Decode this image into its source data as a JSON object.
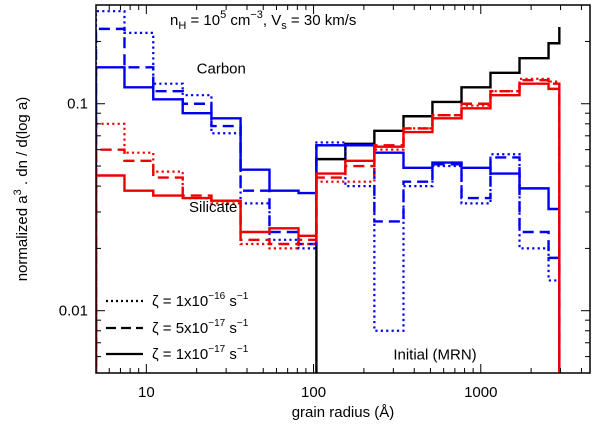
{
  "chart_data": {
    "type": "line",
    "step": true,
    "title_parts": {
      "n": "n",
      "n_sub": "H",
      "eq1": " = 10",
      "exp1": "5",
      "unit1": " cm",
      "exp2": "−3",
      "sep": ", V",
      "v_sub": "s",
      "eq2": " = 30 km/s"
    },
    "xlabel": "grain radius (Å)",
    "ylabel_parts": {
      "a": "normalized a",
      "exp": "3",
      "b": " . dn / d(log a)"
    },
    "xscale": "log",
    "yscale": "log",
    "xlim": [
      5,
      4500
    ],
    "ylim": [
      0.005,
      0.3
    ],
    "x_ticks": [
      {
        "value": 10,
        "label": "10"
      },
      {
        "value": 100,
        "label": "100"
      },
      {
        "value": 1000,
        "label": "1000"
      }
    ],
    "y_ticks": [
      {
        "value": 0.01,
        "label": "0.01"
      },
      {
        "value": 0.1,
        "label": "0.1"
      }
    ],
    "bin_edges": [
      5,
      7.4,
      11,
      16.5,
      24.5,
      36.6,
      54.5,
      81.3,
      104,
      155,
      231,
      345,
      514,
      767,
      1143,
      1705,
      2543,
      2950
    ],
    "annotations": [
      {
        "text": "Carbon",
        "x": 20,
        "y": 0.14
      },
      {
        "text": "Silicate",
        "x": 18,
        "y": 0.03
      },
      {
        "text": "Initial (MRN)",
        "x": 300,
        "y": 0.0058
      }
    ],
    "legend": {
      "position": "bottom-left",
      "entries": [
        {
          "pre": "ζ = 1x10",
          "exp": "−16",
          "unit": " s",
          "uexp": "−1",
          "dash": "dotted"
        },
        {
          "pre": "ζ = 5x10",
          "exp": "−17",
          "unit": " s",
          "uexp": "−1",
          "dash": "dashed"
        },
        {
          "pre": "ζ = 1x10",
          "exp": "−17",
          "unit": " s",
          "uexp": "−1",
          "dash": "solid"
        }
      ]
    },
    "series": [
      {
        "name": "Initial (MRN) - Carbon",
        "color": "#000000",
        "dash": "solid",
        "start_bin": 8,
        "values": [
          0.054,
          0.064,
          0.074,
          0.087,
          0.102,
          0.12,
          0.141,
          0.166,
          0.196,
          0.235
        ]
      },
      {
        "name": "Carbon ζ=1e-17",
        "color": "#0000ee",
        "dash": "solid",
        "start_bin": 0,
        "values": [
          0.15,
          0.12,
          0.105,
          0.09,
          0.085,
          0.048,
          0.038,
          0.037,
          0.063,
          0.063,
          0.058,
          0.049,
          0.052,
          0.049,
          0.046,
          0.039,
          0.031
        ]
      },
      {
        "name": "Carbon ζ=5e-17",
        "color": "#0000ee",
        "dash": "dashed",
        "start_bin": 0,
        "values": [
          0.23,
          0.15,
          0.115,
          0.1,
          0.078,
          0.038,
          0.024,
          0.021,
          0.063,
          0.063,
          0.027,
          0.042,
          0.051,
          0.035,
          0.055,
          0.024,
          0.018
        ]
      },
      {
        "name": "Carbon ζ=1e-16",
        "color": "#0000ee",
        "dash": "dotted",
        "start_bin": 0,
        "values": [
          0.28,
          0.22,
          0.125,
          0.11,
          0.072,
          0.033,
          0.022,
          0.02,
          0.065,
          0.04,
          0.008,
          0.04,
          0.05,
          0.033,
          0.057,
          0.02,
          0.014
        ]
      },
      {
        "name": "Silicate ζ=1e-17",
        "color": "#ee0000",
        "dash": "solid",
        "start_bin": 0,
        "values": [
          0.045,
          0.038,
          0.036,
          0.035,
          0.034,
          0.024,
          0.025,
          0.023,
          0.046,
          0.053,
          0.062,
          0.073,
          0.085,
          0.095,
          0.11,
          0.125,
          0.118
        ]
      },
      {
        "name": "Silicate ζ=5e-17",
        "color": "#ee0000",
        "dash": "dashed",
        "start_bin": 0,
        "values": [
          0.06,
          0.053,
          0.044,
          0.036,
          0.034,
          0.022,
          0.021,
          0.022,
          0.044,
          0.05,
          0.063,
          0.076,
          0.088,
          0.1,
          0.115,
          0.13,
          0.125
        ]
      },
      {
        "name": "Silicate ζ=1e-16",
        "color": "#ee0000",
        "dash": "dotted",
        "start_bin": 0,
        "values": [
          0.08,
          0.058,
          0.047,
          0.035,
          0.033,
          0.021,
          0.02,
          0.021,
          0.042,
          0.042,
          0.06,
          0.076,
          0.088,
          0.098,
          0.115,
          0.132,
          0.128
        ]
      }
    ]
  }
}
